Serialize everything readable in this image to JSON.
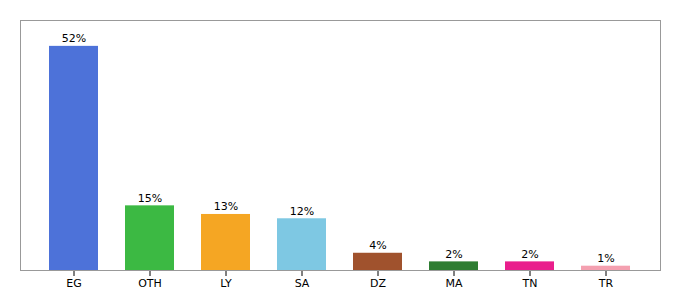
{
  "chart_data": {
    "type": "bar",
    "categories": [
      "EG",
      "OTH",
      "LY",
      "SA",
      "DZ",
      "MA",
      "TN",
      "TR"
    ],
    "values": [
      52,
      15,
      13,
      12,
      4,
      2,
      2,
      1
    ],
    "value_labels": [
      "52%",
      "15%",
      "13%",
      "12%",
      "4%",
      "2%",
      "2%",
      "1%"
    ],
    "colors": [
      "#4d72d9",
      "#3cb943",
      "#f5a623",
      "#7ec8e3",
      "#a0522d",
      "#2e7d32",
      "#e91e8c",
      "#f4a0b0"
    ],
    "ylim": [
      0,
      58
    ],
    "data_labels": true,
    "tick_labels": "x"
  }
}
